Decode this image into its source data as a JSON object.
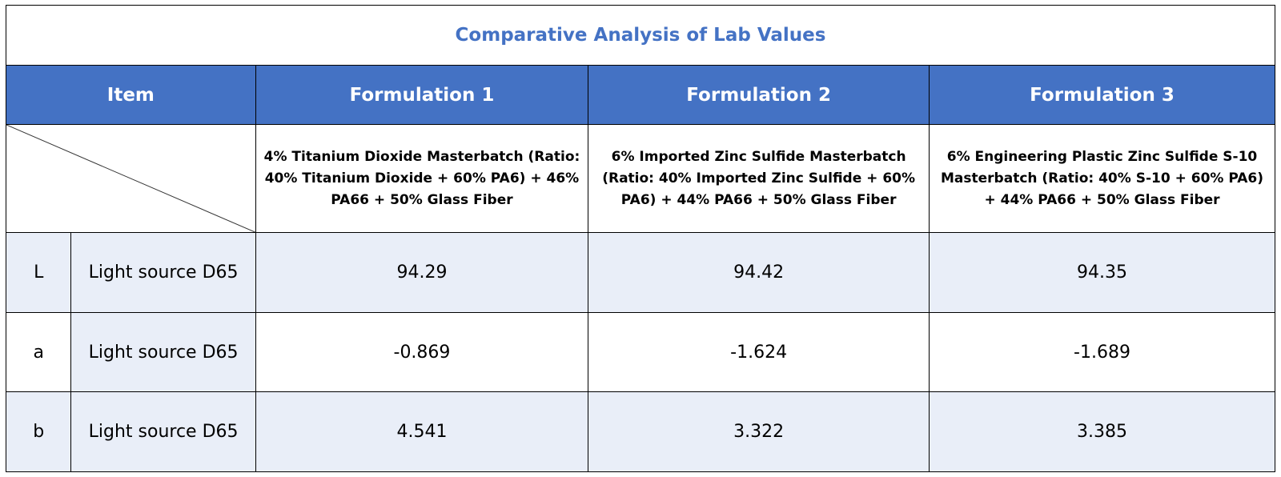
{
  "title": "Comparative Analysis of Lab Values",
  "headers": {
    "item": "Item",
    "formulations": [
      "Formulation 1",
      "Formulation 2",
      "Formulation 3"
    ]
  },
  "descriptions": [
    "4% Titanium Dioxide Masterbatch (Ratio: 40% Titanium Dioxide + 60% PA6) + 46% PA66 + 50% Glass Fiber",
    "6% Imported Zinc Sulfide Masterbatch (Ratio: 40% Imported Zinc Sulfide + 60% PA6) + 44% PA66 + 50% Glass Fiber",
    "6% Engineering Plastic Zinc Sulfide S-10 Masterbatch (Ratio: 40% S-10 + 60% PA6) + 44% PA66 + 50% Glass Fiber"
  ],
  "rows": [
    {
      "symbol": "L",
      "condition": "Light source D65",
      "values": [
        "94.29",
        "94.42",
        "94.35"
      ]
    },
    {
      "symbol": "a",
      "condition": "Light source D65",
      "values": [
        "-0.869",
        "-1.624",
        "-1.689"
      ]
    },
    {
      "symbol": "b",
      "condition": "Light source D65",
      "values": [
        "4.541",
        "3.322",
        "3.385"
      ]
    }
  ],
  "colors": {
    "accent": "#4472c4",
    "row_shade": "#e9eef8",
    "border": "#000000"
  }
}
